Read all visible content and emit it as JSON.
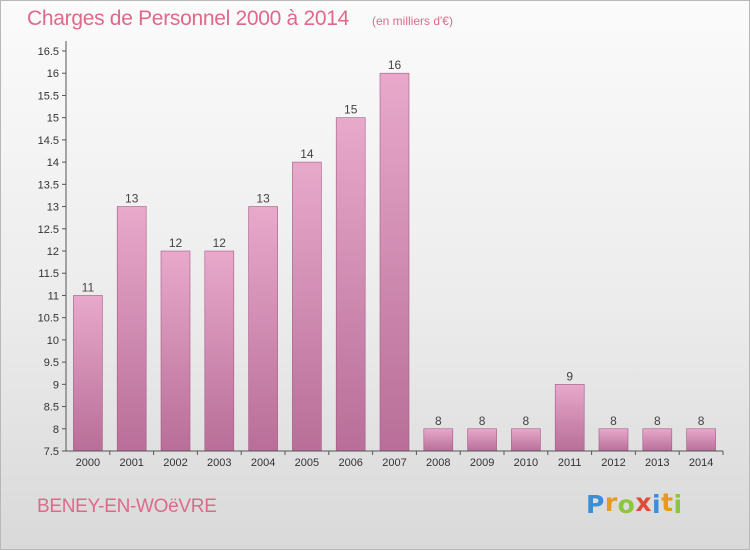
{
  "header": {
    "title": "Charges de Personnel 2000 à 2014",
    "subtitle": "(en milliers d'€)"
  },
  "footer": {
    "place": "BENEY-EN-WOëVRE",
    "logo": {
      "letters": [
        "P",
        "r",
        "o",
        "x",
        "i",
        "t",
        "i"
      ],
      "colors": [
        "#3c8fd6",
        "#e89a1f",
        "#8cc63f",
        "#e04b3a",
        "#3c8fd6",
        "#e89a1f",
        "#8cc63f"
      ]
    }
  },
  "colors": {
    "bar_top": "#e8a9cb",
    "bar_bottom": "#b86e98",
    "bar_edge": "#a35a86",
    "accent": "#e0688a"
  },
  "chart_data": {
    "type": "bar",
    "categories": [
      "2000",
      "2001",
      "2002",
      "2003",
      "2004",
      "2005",
      "2006",
      "2007",
      "2008",
      "2009",
      "2010",
      "2011",
      "2012",
      "2013",
      "2014"
    ],
    "values": [
      11,
      13,
      12,
      12,
      13,
      14,
      15,
      16,
      8,
      8,
      8,
      9,
      8,
      8,
      8
    ],
    "value_labels": [
      "11",
      "13",
      "12",
      "12",
      "13",
      "14",
      "15",
      "16",
      "8",
      "8",
      "8",
      "9",
      "8",
      "8",
      "8"
    ],
    "yticks": [
      "7.5",
      "8",
      "8.5",
      "9",
      "9.5",
      "10",
      "10.5",
      "11",
      "11.5",
      "12",
      "12.5",
      "13",
      "13.5",
      "14",
      "14.5",
      "15",
      "15.5",
      "16",
      "16.5"
    ],
    "ylim": [
      7.5,
      16.5
    ],
    "grid": false,
    "title": "Charges de Personnel 2000 à 2014",
    "xlabel": "",
    "ylabel": ""
  }
}
